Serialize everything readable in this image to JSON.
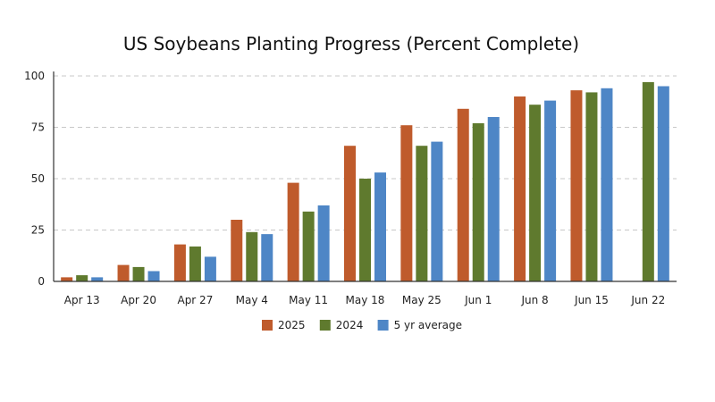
{
  "chart_data": {
    "type": "bar",
    "title": "US Soybeans Planting Progress (Percent Complete)",
    "xlabel": "",
    "ylabel": "",
    "categories": [
      "Apr 13",
      "Apr 20",
      "Apr 27",
      "May 4",
      "May 11",
      "May 18",
      "May 25",
      "Jun 1",
      "Jun 8",
      "Jun 15",
      "Jun 22"
    ],
    "y_ticks": [
      "0",
      "25",
      "50",
      "75",
      "100"
    ],
    "ylim": [
      0,
      100
    ],
    "grid": true,
    "legend_position": "bottom",
    "series": [
      {
        "name": "2025",
        "color": "#bf5b2c",
        "values": [
          2,
          8,
          18,
          30,
          48,
          66,
          76,
          84,
          90,
          93,
          null
        ]
      },
      {
        "name": "2024",
        "color": "#5f7a2e",
        "values": [
          3,
          7,
          17,
          24,
          34,
          50,
          66,
          77,
          86,
          92,
          97
        ]
      },
      {
        "name": "5 yr average",
        "color": "#4e86c6",
        "values": [
          2,
          5,
          12,
          23,
          37,
          53,
          68,
          80,
          88,
          94,
          95
        ]
      }
    ]
  }
}
